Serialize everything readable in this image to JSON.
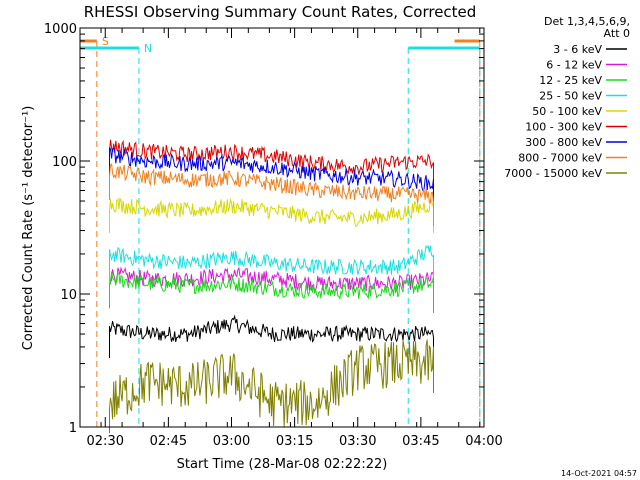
{
  "chart_data": {
    "type": "line",
    "title": "RHESSI Observing Summary Count Rates, Corrected",
    "xlabel": "Start Time (28-Mar-08 02:22:22)",
    "ylabel": "Corrected Count Rate (s⁻¹ detector⁻¹)",
    "y_scale": "log",
    "ylim": [
      1,
      1000
    ],
    "xlim": [
      "02:24",
      "04:00"
    ],
    "x_ticks": [
      "02:30",
      "02:45",
      "03:00",
      "03:15",
      "03:30",
      "03:45",
      "04:00"
    ],
    "y_ticks": [
      "1",
      "10",
      "100",
      "1000"
    ],
    "legend_header": [
      "Det 1,3,4,5,6,9,",
      "Att 0"
    ],
    "series": [
      {
        "name": "3 - 6 keV",
        "color": "#000000",
        "x": [
          "02:31",
          "02:40",
          "02:50",
          "03:00",
          "03:10",
          "03:20",
          "03:30",
          "03:40",
          "03:48"
        ],
        "values": [
          5.5,
          5,
          5,
          6,
          5,
          5,
          5,
          5,
          5
        ]
      },
      {
        "name": "6 - 12 keV",
        "color": "#d81ad8",
        "x": [
          "02:31",
          "02:40",
          "02:50",
          "03:00",
          "03:10",
          "03:20",
          "03:30",
          "03:40",
          "03:48"
        ],
        "values": [
          14,
          13,
          13,
          14,
          13,
          12,
          12,
          12,
          13
        ]
      },
      {
        "name": "12 - 25 keV",
        "color": "#1ad81a",
        "x": [
          "02:31",
          "02:40",
          "02:50",
          "03:00",
          "03:10",
          "03:20",
          "03:30",
          "03:40",
          "03:48"
        ],
        "values": [
          13,
          12,
          11.5,
          12,
          11,
          10.5,
          10.5,
          11,
          12
        ]
      },
      {
        "name": "25 - 50 keV",
        "color": "#1ae0e0",
        "x": [
          "02:31",
          "02:40",
          "02:50",
          "03:00",
          "03:10",
          "03:20",
          "03:30",
          "03:40",
          "03:48"
        ],
        "values": [
          20,
          18,
          17,
          19,
          17,
          16,
          16,
          16,
          22
        ]
      },
      {
        "name": "50 - 100 keV",
        "color": "#d8d800",
        "x": [
          "02:31",
          "02:40",
          "02:50",
          "03:00",
          "03:10",
          "03:20",
          "03:30",
          "03:40",
          "03:48"
        ],
        "values": [
          48,
          44,
          42,
          46,
          42,
          38,
          37,
          40,
          48
        ]
      },
      {
        "name": "100 - 300 keV",
        "color": "#e00000",
        "x": [
          "02:31",
          "02:40",
          "02:50",
          "03:00",
          "03:10",
          "03:20",
          "03:30",
          "03:40",
          "03:48"
        ],
        "values": [
          130,
          118,
          112,
          118,
          108,
          96,
          90,
          98,
          100
        ]
      },
      {
        "name": "300 - 800 keV",
        "color": "#0000e0",
        "x": [
          "02:31",
          "02:40",
          "02:50",
          "03:00",
          "03:10",
          "03:20",
          "03:30",
          "03:40",
          "03:48"
        ],
        "values": [
          112,
          100,
          95,
          97,
          90,
          80,
          75,
          73,
          67
        ]
      },
      {
        "name": "800 - 7000 keV",
        "color": "#f08020",
        "x": [
          "02:31",
          "02:40",
          "02:50",
          "03:00",
          "03:10",
          "03:20",
          "03:30",
          "03:40",
          "03:48"
        ],
        "values": [
          85,
          76,
          72,
          74,
          67,
          60,
          57,
          56,
          54
        ]
      },
      {
        "name": "7000 - 15000 keV",
        "color": "#808000",
        "x": [
          "02:31",
          "02:40",
          "02:50",
          "03:00",
          "03:10",
          "03:20",
          "03:30",
          "03:40",
          "03:48"
        ],
        "values": [
          1.5,
          2.2,
          2,
          2.5,
          1.5,
          1.5,
          2.8,
          3,
          3
        ]
      }
    ],
    "markers": [
      {
        "label": "S",
        "color": "#f08020",
        "x_bars": [
          [
            "02:24",
            "02:28"
          ],
          [
            "03:53",
            "03:59"
          ]
        ],
        "x_dashes": [
          "02:28",
          "03:59"
        ]
      },
      {
        "label": "N",
        "color": "#1ae0e0",
        "x_bars": [
          [
            "02:24",
            "02:38"
          ],
          [
            "03:42",
            "03:59"
          ]
        ],
        "x_dashes": [
          "02:24",
          "02:38",
          "03:42",
          "03:59"
        ]
      }
    ],
    "timestamp": "14-Oct-2021 04:57",
    "grid": false,
    "legend_position": "right"
  }
}
